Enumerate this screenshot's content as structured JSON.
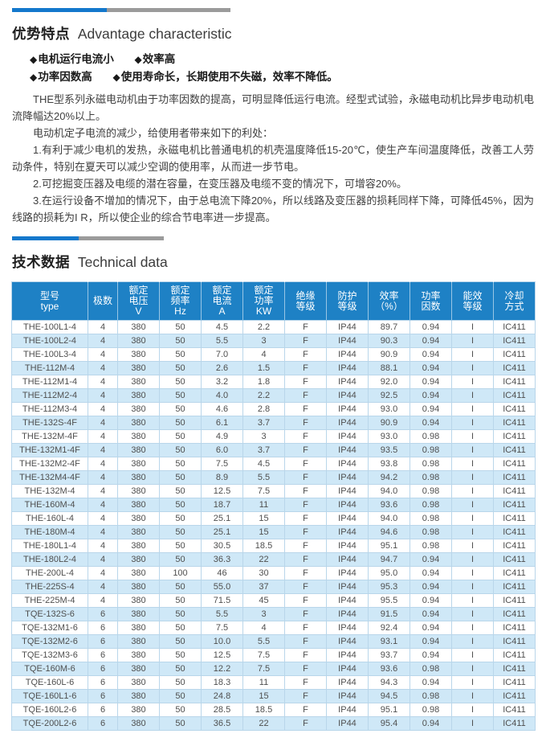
{
  "colors": {
    "table_header_blue": "#1e81c5",
    "bar_blue": "#1478cc",
    "bar_gray": "#9b9b9b",
    "row_alternate_blue": "#cfe8f7",
    "cell_border": "#b9d6ea"
  },
  "advantage": {
    "title_cn": "优势特点",
    "title_en": "Advantage characteristic",
    "bullet_marker": "◆",
    "bullets": [
      {
        "text": "电机运行电流小"
      },
      {
        "text": "效率高"
      },
      {
        "text": "功率因数高"
      },
      {
        "text": "使用寿命长，长期使用不失磁，效率不降低。"
      }
    ],
    "paragraphs": [
      "THE型系列永磁电动机由于功率因数的提高，可明显降低运行电流。经型式试验，永磁电动机比异步电动机电流降幅达20%以上。",
      "电动机定子电流的减少，给使用者带来如下的利处：",
      "1.有利于减少电机的发热，永磁电机比普通电机的机壳温度降低15-20℃，使生产车间温度降低，改善工人劳动条件，特别在夏天可以减少空调的使用率，从而进一步节电。",
      "2.可挖掘变压器及电缆的潜在容量，在变压器及电缆不变的情况下，可增容20%。",
      "3.在运行设备不增加的情况下，由于总电流下降20%，所以线路及变压器的损耗同样下降，可降低45%，因为线路的损耗为I R，所以使企业的综合节电率进一步提高。"
    ]
  },
  "technical": {
    "title_cn": "技术数据",
    "title_en": "Technical data",
    "table": {
      "headers": [
        {
          "lines": [
            "型号",
            "type"
          ]
        },
        {
          "lines": [
            "极数"
          ]
        },
        {
          "lines": [
            "额定",
            "电压",
            "V"
          ]
        },
        {
          "lines": [
            "额定",
            "频率",
            "Hz"
          ]
        },
        {
          "lines": [
            "额定",
            "电流",
            "A"
          ]
        },
        {
          "lines": [
            "额定",
            "功率",
            "KW"
          ]
        },
        {
          "lines": [
            "绝缘",
            "等级"
          ]
        },
        {
          "lines": [
            "防护",
            "等级"
          ]
        },
        {
          "lines": [
            "效率",
            "（%）"
          ]
        },
        {
          "lines": [
            "功率",
            "因数"
          ]
        },
        {
          "lines": [
            "能效",
            "等级"
          ]
        },
        {
          "lines": [
            "冷却",
            "方式"
          ]
        }
      ],
      "rows": [
        [
          "THE-100L1-4",
          "4",
          "380",
          "50",
          "4.5",
          "2.2",
          "F",
          "IP44",
          "89.7",
          "0.94",
          "I",
          "IC411"
        ],
        [
          "THE-100L2-4",
          "4",
          "380",
          "50",
          "5.5",
          "3",
          "F",
          "IP44",
          "90.3",
          "0.94",
          "I",
          "IC411"
        ],
        [
          "THE-100L3-4",
          "4",
          "380",
          "50",
          "7.0",
          "4",
          "F",
          "IP44",
          "90.9",
          "0.94",
          "I",
          "IC411"
        ],
        [
          "THE-112M-4",
          "4",
          "380",
          "50",
          "2.6",
          "1.5",
          "F",
          "IP44",
          "88.1",
          "0.94",
          "I",
          "IC411"
        ],
        [
          "THE-112M1-4",
          "4",
          "380",
          "50",
          "3.2",
          "1.8",
          "F",
          "IP44",
          "92.0",
          "0.94",
          "I",
          "IC411"
        ],
        [
          "THE-112M2-4",
          "4",
          "380",
          "50",
          "4.0",
          "2.2",
          "F",
          "IP44",
          "92.5",
          "0.94",
          "I",
          "IC411"
        ],
        [
          "THE-112M3-4",
          "4",
          "380",
          "50",
          "4.6",
          "2.8",
          "F",
          "IP44",
          "93.0",
          "0.94",
          "I",
          "IC411"
        ],
        [
          "THE-132S-4F",
          "4",
          "380",
          "50",
          "6.1",
          "3.7",
          "F",
          "IP44",
          "90.9",
          "0.94",
          "I",
          "IC411"
        ],
        [
          "THE-132M-4F",
          "4",
          "380",
          "50",
          "4.9",
          "3",
          "F",
          "IP44",
          "93.0",
          "0.98",
          "I",
          "IC411"
        ],
        [
          "THE-132M1-4F",
          "4",
          "380",
          "50",
          "6.0",
          "3.7",
          "F",
          "IP44",
          "93.5",
          "0.98",
          "I",
          "IC411"
        ],
        [
          "THE-132M2-4F",
          "4",
          "380",
          "50",
          "7.5",
          "4.5",
          "F",
          "IP44",
          "93.8",
          "0.98",
          "I",
          "IC411"
        ],
        [
          "THE-132M4-4F",
          "4",
          "380",
          "50",
          "8.9",
          "5.5",
          "F",
          "IP44",
          "94.2",
          "0.98",
          "I",
          "IC411"
        ],
        [
          "THE-132M-4",
          "4",
          "380",
          "50",
          "12.5",
          "7.5",
          "F",
          "IP44",
          "94.0",
          "0.98",
          "I",
          "IC411"
        ],
        [
          "THE-160M-4",
          "4",
          "380",
          "50",
          "18.7",
          "11",
          "F",
          "IP44",
          "93.6",
          "0.98",
          "I",
          "IC411"
        ],
        [
          "THE-160L-4",
          "4",
          "380",
          "50",
          "25.1",
          "15",
          "F",
          "IP44",
          "94.0",
          "0.98",
          "I",
          "IC411"
        ],
        [
          "THE-180M-4",
          "4",
          "380",
          "50",
          "25.1",
          "15",
          "F",
          "IP44",
          "94.6",
          "0.98",
          "I",
          "IC411"
        ],
        [
          "THE-180L1-4",
          "4",
          "380",
          "50",
          "30.5",
          "18.5",
          "F",
          "IP44",
          "95.1",
          "0.98",
          "I",
          "IC411"
        ],
        [
          "THE-180L2-4",
          "4",
          "380",
          "50",
          "36.3",
          "22",
          "F",
          "IP44",
          "94.7",
          "0.94",
          "I",
          "IC411"
        ],
        [
          "THE-200L-4",
          "4",
          "380",
          "100",
          "46",
          "30",
          "F",
          "IP44",
          "95.0",
          "0.94",
          "I",
          "IC411"
        ],
        [
          "THE-225S-4",
          "4",
          "380",
          "50",
          "55.0",
          "37",
          "F",
          "IP44",
          "95.3",
          "0.94",
          "I",
          "IC411"
        ],
        [
          "THE-225M-4",
          "4",
          "380",
          "50",
          "71.5",
          "45",
          "F",
          "IP44",
          "95.5",
          "0.94",
          "I",
          "IC411"
        ],
        [
          "TQE-132S-6",
          "6",
          "380",
          "50",
          "5.5",
          "3",
          "F",
          "IP44",
          "91.5",
          "0.94",
          "I",
          "IC411"
        ],
        [
          "TQE-132M1-6",
          "6",
          "380",
          "50",
          "7.5",
          "4",
          "F",
          "IP44",
          "92.4",
          "0.94",
          "I",
          "IC411"
        ],
        [
          "TQE-132M2-6",
          "6",
          "380",
          "50",
          "10.0",
          "5.5",
          "F",
          "IP44",
          "93.1",
          "0.94",
          "I",
          "IC411"
        ],
        [
          "TQE-132M3-6",
          "6",
          "380",
          "50",
          "12.5",
          "7.5",
          "F",
          "IP44",
          "93.7",
          "0.94",
          "I",
          "IC411"
        ],
        [
          "TQE-160M-6",
          "6",
          "380",
          "50",
          "12.2",
          "7.5",
          "F",
          "IP44",
          "93.6",
          "0.98",
          "I",
          "IC411"
        ],
        [
          "TQE-160L-6",
          "6",
          "380",
          "50",
          "18.3",
          "11",
          "F",
          "IP44",
          "94.3",
          "0.94",
          "I",
          "IC411"
        ],
        [
          "TQE-160L1-6",
          "6",
          "380",
          "50",
          "24.8",
          "15",
          "F",
          "IP44",
          "94.5",
          "0.98",
          "I",
          "IC411"
        ],
        [
          "TQE-160L2-6",
          "6",
          "380",
          "50",
          "28.5",
          "18.5",
          "F",
          "IP44",
          "95.1",
          "0.98",
          "I",
          "IC411"
        ],
        [
          "TQE-200L2-6",
          "6",
          "380",
          "50",
          "36.5",
          "22",
          "F",
          "IP44",
          "95.4",
          "0.94",
          "I",
          "IC411"
        ]
      ]
    }
  }
}
